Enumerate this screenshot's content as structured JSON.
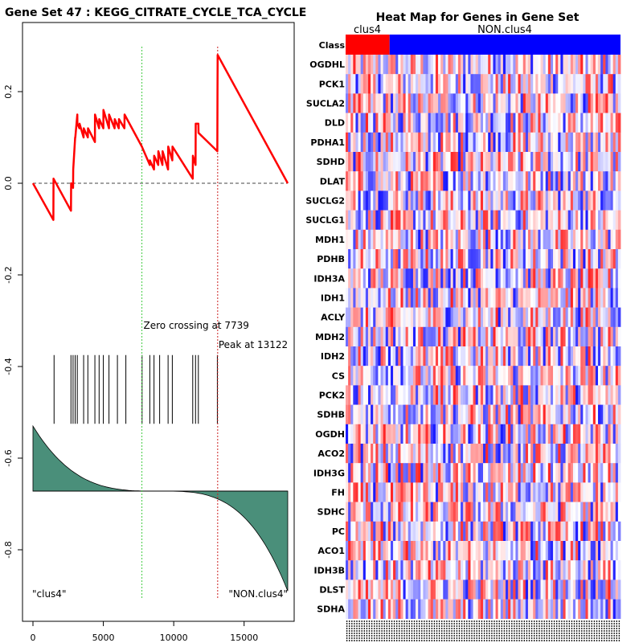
{
  "chart_data": [
    {
      "type": "line",
      "title": "Gene Set  47 : KEGG_CITRATE_CYCLE_TCA_CYCLE",
      "xlim": [
        0,
        18100
      ],
      "ylim": [
        -0.9,
        0.3
      ],
      "x_ticks": [
        0,
        5000,
        10000,
        15000
      ],
      "y_ticks": [
        0.2,
        0.0,
        -0.2,
        -0.4,
        -0.6,
        -0.8
      ],
      "y_tick_labels": [
        "0.2",
        "0.0",
        "-0.2",
        "-0.4",
        "-0.6",
        "-0.8"
      ],
      "enrichment_curve": {
        "color": "#ff0000",
        "x": [
          0,
          1450,
          1460,
          2700,
          2710,
          2850,
          2860,
          3000,
          3010,
          3150,
          3160,
          3300,
          3310,
          3600,
          3610,
          3900,
          3910,
          4400,
          4410,
          4700,
          4710,
          5000,
          5010,
          5400,
          5410,
          5800,
          5810,
          6100,
          6110,
          6500,
          6510,
          7739,
          8300,
          8310,
          8600,
          8610,
          8900,
          8910,
          9200,
          9210,
          9600,
          9610,
          9900,
          9910,
          11350,
          11360,
          11550,
          11560,
          11750,
          11760,
          13100,
          13110,
          13122,
          18100
        ],
        "y": [
          0.0,
          -0.08,
          0.01,
          -0.06,
          0.0,
          -0.01,
          0.03,
          0.1,
          0.1,
          0.15,
          0.13,
          0.12,
          0.13,
          0.1,
          0.12,
          0.1,
          0.12,
          0.09,
          0.15,
          0.12,
          0.14,
          0.12,
          0.16,
          0.12,
          0.15,
          0.12,
          0.14,
          0.12,
          0.14,
          0.12,
          0.15,
          0.08,
          0.04,
          0.05,
          0.03,
          0.06,
          0.04,
          0.07,
          0.04,
          0.07,
          0.03,
          0.08,
          0.05,
          0.08,
          0.01,
          0.06,
          0.04,
          0.13,
          0.13,
          0.11,
          0.07,
          0.2,
          0.28,
          0.0
        ]
      },
      "baseline": 0.0,
      "zero_crossing": 7739,
      "peak": 13122,
      "zero_crossing_label": "Zero crossing at 7739",
      "peak_label": "Peak at 13122",
      "hit_positions": [
        1500,
        2700,
        2850,
        3000,
        3150,
        3600,
        3900,
        4400,
        4700,
        5000,
        5400,
        6000,
        6600,
        7750,
        8300,
        8600,
        9000,
        9600,
        9900,
        11350,
        11550,
        11750,
        13100
      ],
      "hit_y_range": [
        -0.525,
        -0.375
      ],
      "metric_fill_color": "#4a8f7a",
      "metric_baseline": -0.672,
      "metric_start": -0.53,
      "metric_end": -0.89,
      "left_label": "\"clus4\"",
      "right_label": "\"NON.clus4\""
    },
    {
      "type": "heatmap",
      "title": "Heat Map for Genes in Gene Set",
      "class_labels": [
        "clus4",
        "NON.clus4"
      ],
      "class_colors": [
        "#ff0000",
        "#0000ff"
      ],
      "class_row_label": "Class",
      "class_split_fraction": 0.16,
      "n_columns": 110,
      "genes": [
        "OGDHL",
        "PCK1",
        "SUCLA2",
        "DLD",
        "PDHA1",
        "SDHD",
        "DLAT",
        "SUCLG2",
        "SUCLG1",
        "MDH1",
        "PDHB",
        "IDH3A",
        "IDH1",
        "ACLY",
        "MDH2",
        "IDH2",
        "CS",
        "PCK2",
        "SDHB",
        "OGDH",
        "ACO2",
        "IDH3G",
        "FH",
        "SDHC",
        "PC",
        "ACO1",
        "IDH3B",
        "DLST",
        "SDHA"
      ]
    }
  ]
}
